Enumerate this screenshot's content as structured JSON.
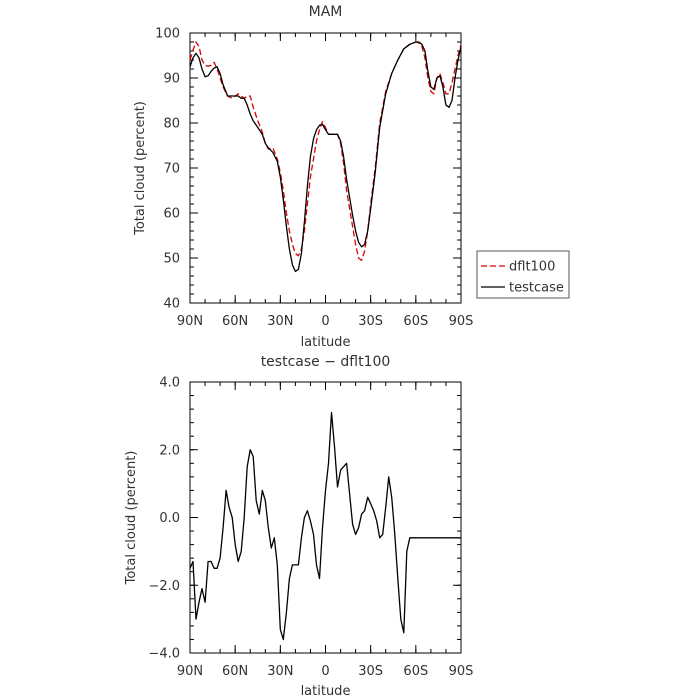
{
  "chart_data": [
    {
      "type": "line",
      "title": "MAM",
      "xlabel": "latitude",
      "ylabel": "Total cloud (percent)",
      "xlim": [
        90,
        -90
      ],
      "ylim": [
        40,
        100
      ],
      "xticks": [
        90,
        60,
        30,
        0,
        -30,
        -60,
        -90
      ],
      "xtick_labels": [
        "90N",
        "60N",
        "30N",
        "0",
        "30S",
        "60S",
        "90S"
      ],
      "yticks": [
        40,
        50,
        60,
        70,
        80,
        90,
        100
      ],
      "ytick_labels": [
        "40",
        "50",
        "60",
        "70",
        "80",
        "90",
        "100"
      ],
      "legend_position": "right",
      "series": [
        {
          "name": "dflt100",
          "color": "#dd0000",
          "dash": true,
          "x": [
            90,
            88,
            86,
            84,
            82,
            80,
            78,
            76,
            74,
            72,
            70,
            68,
            65,
            62,
            60,
            58,
            56,
            54,
            52,
            50,
            48,
            45,
            42,
            40,
            38,
            35,
            32,
            30,
            28,
            26,
            24,
            22,
            20,
            18,
            16,
            14,
            12,
            10,
            8,
            6,
            4,
            2,
            0,
            -2,
            -4,
            -6,
            -8,
            -10,
            -12,
            -14,
            -16,
            -18,
            -20,
            -22,
            -24,
            -26,
            -28,
            -30,
            -33,
            -36,
            -40,
            -44,
            -48,
            -52,
            -56,
            -60,
            -62,
            -64,
            -66,
            -68,
            -70,
            -72,
            -74,
            -76,
            -78,
            -80,
            -82,
            -84,
            -86,
            -88,
            -90
          ],
          "values": [
            94,
            96.2,
            98,
            97,
            94,
            92.8,
            92.6,
            92.8,
            93.5,
            92,
            90,
            88,
            86,
            85.5,
            86,
            86.5,
            86,
            85.5,
            86,
            86,
            83.5,
            80.5,
            78,
            75.5,
            74.2,
            74.5,
            72,
            69,
            65,
            60,
            56,
            53,
            51,
            50.5,
            52,
            56,
            62,
            68,
            72,
            76,
            78.5,
            80.3,
            79,
            77.5,
            77.5,
            77.5,
            77.5,
            75.5,
            71,
            65,
            61,
            57,
            53,
            50,
            49.5,
            51.5,
            56,
            62,
            70,
            80,
            87,
            91,
            94,
            96.5,
            97.5,
            98,
            97.8,
            97,
            94.5,
            90,
            87,
            86.5,
            90,
            91,
            89,
            86.5,
            86.5,
            89,
            92,
            95,
            97.5
          ]
        },
        {
          "name": "testcase",
          "color": "#000000",
          "dash": false,
          "x": [
            90,
            88,
            86,
            84,
            82,
            80,
            78,
            76,
            74,
            72,
            70,
            68,
            65,
            62,
            60,
            58,
            56,
            54,
            52,
            50,
            48,
            45,
            42,
            40,
            38,
            35,
            32,
            30,
            28,
            26,
            24,
            22,
            20,
            18,
            16,
            14,
            12,
            10,
            8,
            6,
            4,
            2,
            0,
            -2,
            -4,
            -6,
            -8,
            -10,
            -12,
            -14,
            -16,
            -18,
            -20,
            -22,
            -24,
            -26,
            -28,
            -30,
            -33,
            -36,
            -40,
            -44,
            -48,
            -52,
            -56,
            -60,
            -62,
            -64,
            -66,
            -68,
            -70,
            -72,
            -74,
            -76,
            -78,
            -80,
            -82,
            -84,
            -86,
            -88,
            -90
          ],
          "values": [
            92.5,
            94.5,
            95.5,
            94.5,
            92,
            90.3,
            90.5,
            91.5,
            92.2,
            92.5,
            91,
            88.5,
            86,
            86,
            86,
            86,
            85.5,
            85.5,
            84,
            82,
            80.5,
            79,
            77.5,
            75.5,
            74.5,
            73.5,
            71.5,
            68,
            63,
            57,
            52,
            48.5,
            47,
            47.5,
            51,
            58,
            66,
            72.5,
            76.5,
            78.5,
            79.5,
            79.7,
            78.5,
            77.5,
            77.5,
            77.5,
            77.5,
            76,
            72.5,
            67.5,
            63.5,
            59.5,
            56,
            53.5,
            52.5,
            53,
            56,
            61,
            69,
            79,
            86.5,
            91,
            94,
            96.5,
            97.5,
            98,
            98,
            97.5,
            96,
            91.5,
            88,
            87.5,
            90,
            90.5,
            88,
            84,
            83.5,
            85,
            90,
            94,
            97
          ]
        }
      ]
    },
    {
      "type": "line",
      "title": "testcase − dflt100",
      "xlabel": "latitude",
      "ylabel": "Total cloud (percent)",
      "xlim": [
        90,
        -90
      ],
      "ylim": [
        -4,
        4
      ],
      "xticks": [
        90,
        60,
        30,
        0,
        -30,
        -60,
        -90
      ],
      "xtick_labels": [
        "90N",
        "60N",
        "30N",
        "0",
        "30S",
        "60S",
        "90S"
      ],
      "yticks": [
        -4,
        -2,
        0,
        2,
        4
      ],
      "ytick_labels": [
        "−4.0",
        "−2.0",
        "0.0",
        "2.0",
        "4.0"
      ],
      "series": [
        {
          "name": "",
          "color": "#000000",
          "dash": false,
          "x": [
            90,
            88,
            86,
            84,
            82,
            80,
            78,
            76,
            74,
            72,
            70,
            68,
            66,
            64,
            62,
            60,
            58,
            56,
            54,
            52,
            50,
            48,
            46,
            44,
            42,
            40,
            38,
            36,
            34,
            32,
            30,
            28,
            26,
            24,
            22,
            20,
            18,
            16,
            14,
            12,
            10,
            8,
            6,
            4,
            2,
            0,
            -2,
            -4,
            -6,
            -8,
            -10,
            -12,
            -14,
            -16,
            -18,
            -20,
            -22,
            -24,
            -26,
            -28,
            -30,
            -32,
            -34,
            -36,
            -38,
            -40,
            -42,
            -44,
            -46,
            -48,
            -50,
            -52,
            -54,
            -56,
            -58,
            -60,
            -62,
            -64,
            -66,
            -68,
            -70,
            -72,
            -74,
            -76,
            -78,
            -80,
            -82,
            -84,
            -86,
            -88,
            -90
          ],
          "values": [
            -1.5,
            -1.3,
            -3.0,
            -2.5,
            -2.1,
            -2.5,
            -1.3,
            -1.3,
            -1.5,
            -1.5,
            -1.2,
            -0.3,
            0.8,
            0.3,
            0.0,
            -0.8,
            -1.3,
            -1.0,
            0.0,
            1.5,
            2.0,
            1.8,
            0.5,
            0.1,
            0.8,
            0.5,
            -0.3,
            -0.9,
            -0.6,
            -1.4,
            -3.3,
            -3.6,
            -2.8,
            -1.8,
            -1.4,
            -1.4,
            -1.4,
            -0.6,
            0.0,
            0.2,
            -0.1,
            -0.5,
            -1.4,
            -1.8,
            -0.3,
            0.8,
            1.6,
            3.1,
            2.1,
            0.9,
            1.4,
            1.5,
            1.6,
            0.7,
            -0.2,
            -0.5,
            -0.3,
            0.1,
            0.2,
            0.6,
            0.4,
            0.2,
            -0.1,
            -0.6,
            -0.5,
            0.3,
            1.2,
            0.6,
            -0.5,
            -1.8,
            -3.0,
            -3.4,
            -1.0,
            -0.6,
            -0.6,
            -0.6,
            -0.6,
            -0.6,
            -0.6,
            -0.6,
            -0.6,
            -0.6,
            -0.6,
            -0.6,
            -0.6,
            -0.6,
            -0.6,
            -0.6,
            -0.6,
            -0.6,
            -0.6
          ]
        }
      ]
    }
  ]
}
